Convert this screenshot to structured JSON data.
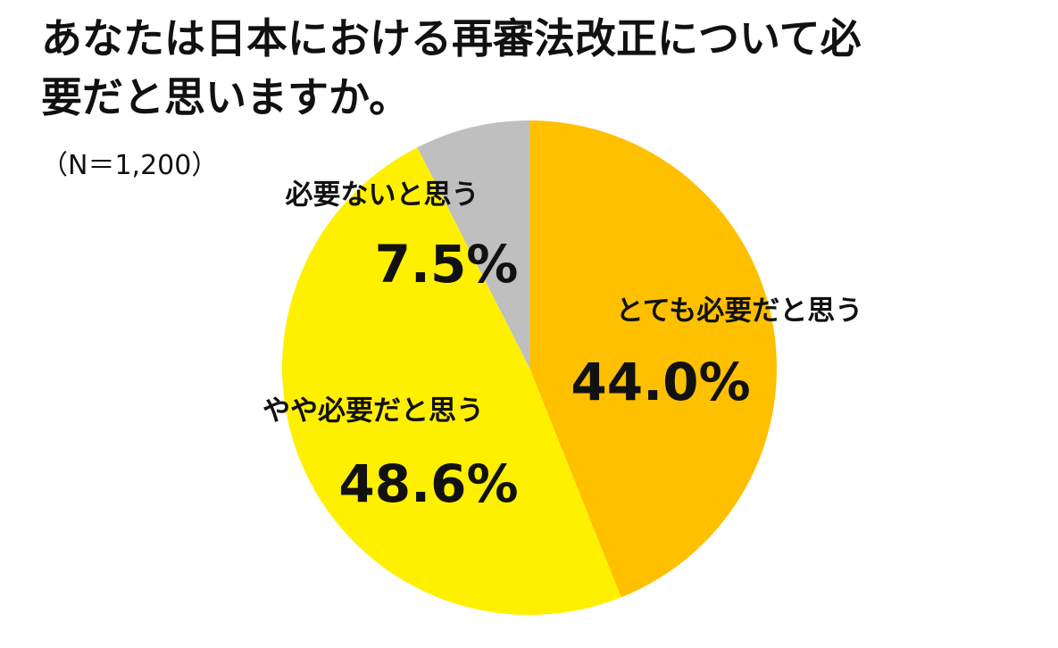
{
  "chart_data": {
    "type": "pie",
    "title": "あなたは日本における再審法改正について必要だと思いますか。",
    "subtitle": "（N＝1,200）",
    "series": [
      {
        "name": "とても必要だと思う",
        "color": "#FFC000",
        "values": [
          44.0
        ],
        "value_labels": [
          "44.0%"
        ]
      },
      {
        "name": "やや必要だと思う",
        "color": "#FFF000",
        "values": [
          48.6
        ],
        "value_labels": [
          "48.6%"
        ]
      },
      {
        "name": "必要ないと思う",
        "color": "#BFBFBF",
        "values": [
          7.5
        ],
        "value_labels": [
          "7.5%"
        ]
      }
    ]
  }
}
